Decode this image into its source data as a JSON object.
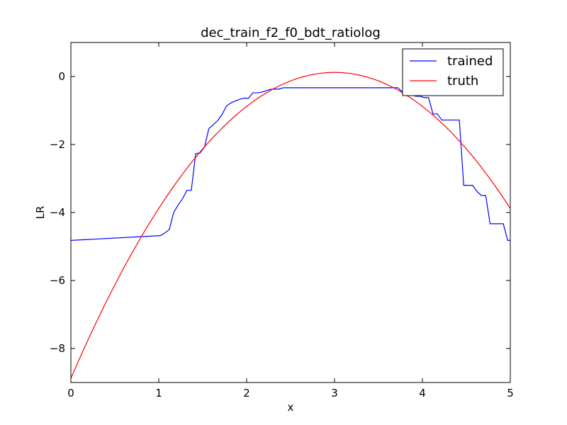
{
  "chart_data": {
    "type": "line",
    "title": "dec_train_f2_f0_bdt_ratiolog",
    "xlabel": "x",
    "ylabel": "LR",
    "xlim": [
      0,
      5
    ],
    "ylim": [
      -9,
      1
    ],
    "xticks": [
      0,
      1,
      2,
      3,
      4,
      5
    ],
    "xtick_labels": [
      "0",
      "1",
      "2",
      "3",
      "4",
      "5"
    ],
    "yticks": [
      0,
      -2,
      -4,
      -6,
      -8
    ],
    "ytick_labels": [
      "0",
      "−2",
      "−4",
      "−6",
      "−8"
    ],
    "grid": false,
    "legend_position": "top-right",
    "series": [
      {
        "name": "trained",
        "color": "#0000ff",
        "step": true,
        "x": [
          0,
          1.02,
          1.07,
          1.12,
          1.17,
          1.22,
          1.27,
          1.32,
          1.37,
          1.42,
          1.47,
          1.52,
          1.57,
          1.62,
          1.67,
          1.72,
          1.77,
          1.82,
          1.87,
          1.92,
          1.97,
          2.02,
          2.07,
          2.12,
          2.17,
          2.22,
          2.27,
          2.32,
          2.37,
          2.42,
          2.47,
          2.52,
          3.52,
          3.57,
          3.62,
          3.67,
          3.72,
          3.77,
          3.82,
          3.87,
          3.92,
          3.97,
          4.02,
          4.07,
          4.12,
          4.17,
          4.22,
          4.27,
          4.32,
          4.37,
          4.42,
          4.47,
          4.52,
          4.57,
          4.62,
          4.67,
          4.72,
          4.77,
          4.82,
          4.87,
          4.92,
          4.97,
          5.0
        ],
        "values": [
          -4.82,
          -4.68,
          -4.6,
          -4.5,
          -4.0,
          -3.78,
          -3.6,
          -3.35,
          -3.35,
          -2.27,
          -2.25,
          -2.08,
          -1.53,
          -1.42,
          -1.3,
          -1.12,
          -0.87,
          -0.78,
          -0.72,
          -0.67,
          -0.64,
          -0.64,
          -0.48,
          -0.48,
          -0.46,
          -0.42,
          -0.38,
          -0.37,
          -0.37,
          -0.33,
          -0.33,
          -0.33,
          -0.33,
          -0.33,
          -0.33,
          -0.33,
          -0.33,
          -0.45,
          -0.45,
          -0.45,
          -0.58,
          -0.58,
          -0.62,
          -0.62,
          -1.1,
          -1.1,
          -1.28,
          -1.28,
          -1.28,
          -1.28,
          -1.28,
          -3.2,
          -3.2,
          -3.2,
          -3.38,
          -3.5,
          -3.5,
          -4.33,
          -4.33,
          -4.33,
          -4.33,
          -4.82,
          -4.82
        ]
      },
      {
        "name": "truth",
        "color": "#ff0000",
        "formula": "0.12 - 1.0*(x-3)^2",
        "x_samples": 201
      }
    ]
  }
}
